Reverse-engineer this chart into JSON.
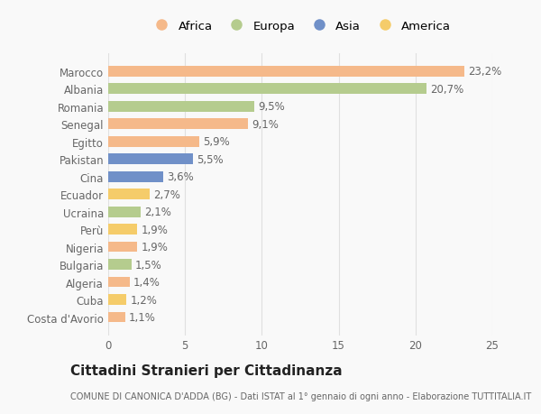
{
  "countries": [
    "Costa d'Avorio",
    "Cuba",
    "Algeria",
    "Bulgaria",
    "Nigeria",
    "Perù",
    "Ucraina",
    "Ecuador",
    "Cina",
    "Pakistan",
    "Egitto",
    "Senegal",
    "Romania",
    "Albania",
    "Marocco"
  ],
  "values": [
    1.1,
    1.2,
    1.4,
    1.5,
    1.9,
    1.9,
    2.1,
    2.7,
    3.6,
    5.5,
    5.9,
    9.1,
    9.5,
    20.7,
    23.2
  ],
  "labels": [
    "1,1%",
    "1,2%",
    "1,4%",
    "1,5%",
    "1,9%",
    "1,9%",
    "2,1%",
    "2,7%",
    "3,6%",
    "5,5%",
    "5,9%",
    "9,1%",
    "9,5%",
    "20,7%",
    "23,2%"
  ],
  "colors": [
    "#f5b98a",
    "#f5cc6a",
    "#f5b98a",
    "#b5cc8e",
    "#f5b98a",
    "#f5cc6a",
    "#b5cc8e",
    "#f5cc6a",
    "#7090c8",
    "#7090c8",
    "#f5b98a",
    "#f5b98a",
    "#b5cc8e",
    "#b5cc8e",
    "#f5b98a"
  ],
  "legend_labels": [
    "Africa",
    "Europa",
    "Asia",
    "America"
  ],
  "legend_colors": [
    "#f5b98a",
    "#b5cc8e",
    "#7090c8",
    "#f5cc6a"
  ],
  "title": "Cittadini Stranieri per Cittadinanza",
  "subtitle": "COMUNE DI CANONICA D'ADDA (BG) - Dati ISTAT al 1° gennaio di ogni anno - Elaborazione TUTTITALIA.IT",
  "xlim": [
    0,
    25
  ],
  "xticks": [
    0,
    5,
    10,
    15,
    20,
    25
  ],
  "bg_color": "#f9f9f9",
  "grid_color": "#e0e0e0",
  "bar_height": 0.6,
  "label_fontsize": 8.5,
  "tick_fontsize": 8.5,
  "legend_fontsize": 9.5,
  "title_fontsize": 11,
  "subtitle_fontsize": 7
}
